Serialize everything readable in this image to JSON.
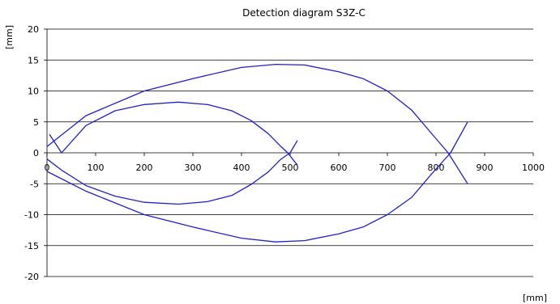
{
  "chart_data": {
    "type": "line",
    "title": "Detection diagram S3Z-C",
    "xlabel": "[mm]",
    "ylabel": "[mm]",
    "xlim": [
      0,
      1000
    ],
    "ylim": [
      -20,
      20
    ],
    "xticks": [
      0,
      100,
      200,
      300,
      400,
      500,
      600,
      700,
      800,
      900,
      1000
    ],
    "yticks": [
      -20,
      -15,
      -10,
      -5,
      0,
      5,
      10,
      15,
      20
    ],
    "grid": "horizontal",
    "color": "#1f1fd1",
    "series": [
      {
        "points": [
          [
            0,
            -1
          ],
          [
            30,
            -2.8
          ],
          [
            80,
            -5.3
          ],
          [
            140,
            -7
          ],
          [
            200,
            -8
          ],
          [
            270,
            -8.3
          ],
          [
            330,
            -7.9
          ],
          [
            380,
            -6.9
          ],
          [
            420,
            -5.1
          ],
          [
            455,
            -3.1
          ],
          [
            480,
            -1.1
          ],
          [
            500,
            0
          ],
          [
            515,
            2
          ]
        ]
      },
      {
        "points": [
          [
            0,
            -3
          ],
          [
            80,
            -6.2
          ],
          [
            200,
            -10
          ],
          [
            300,
            -12
          ],
          [
            400,
            -13.8
          ],
          [
            470,
            -14.4
          ],
          [
            530,
            -14.2
          ],
          [
            600,
            -13.1
          ],
          [
            650,
            -12
          ],
          [
            700,
            -10
          ],
          [
            750,
            -7.2
          ],
          [
            790,
            -3.5
          ],
          [
            830,
            0
          ],
          [
            865,
            5
          ]
        ]
      },
      {
        "points": [
          [
            5,
            3
          ],
          [
            30,
            0
          ],
          [
            80,
            4.4
          ],
          [
            140,
            6.8
          ],
          [
            200,
            7.8
          ],
          [
            270,
            8.2
          ],
          [
            330,
            7.8
          ],
          [
            380,
            6.8
          ],
          [
            420,
            5.2
          ],
          [
            455,
            3.1
          ],
          [
            480,
            1.1
          ],
          [
            495,
            0
          ],
          [
            515,
            -2
          ]
        ]
      },
      {
        "points": [
          [
            0,
            1
          ],
          [
            80,
            6
          ],
          [
            200,
            10
          ],
          [
            300,
            12
          ],
          [
            400,
            13.8
          ],
          [
            470,
            14.3
          ],
          [
            530,
            14.2
          ],
          [
            600,
            13.1
          ],
          [
            650,
            12
          ],
          [
            700,
            10
          ],
          [
            750,
            6.9
          ],
          [
            790,
            3.2
          ],
          [
            825,
            0
          ],
          [
            865,
            -5
          ]
        ]
      }
    ]
  }
}
